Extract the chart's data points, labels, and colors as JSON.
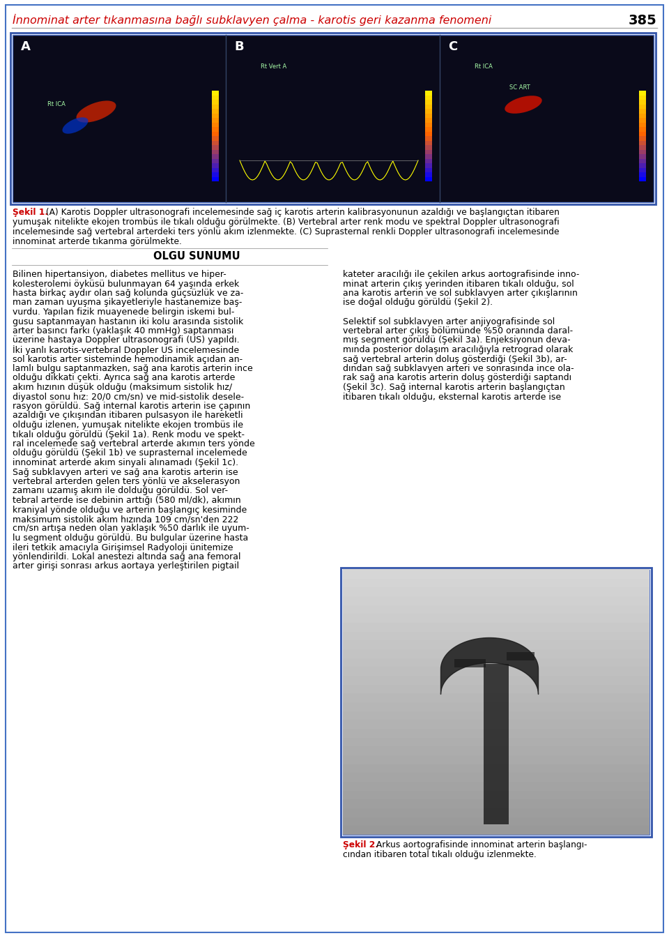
{
  "page_title": "İnnominat arter tıkanmasına bağlı subklavyen çalma - karotis geri kazanma fenomeni",
  "page_number": "385",
  "title_color": "#cc0000",
  "title_fontsize": 11.5,
  "page_number_fontsize": 14,
  "figure_caption_bold": "Şekil 1.",
  "figure_caption_text": " (A) Karotis Doppler ultrasonografi incelemesinde sağ iç karotis arterin kalibrasyonunun azaldığı ve başlangıçtan itibaren yumuşak nitelikte ekojen trombüs ile tıkalı olduğu görülmekte. (B) Vertebral arter renk modu ve spektral Doppler ultrasonografi incelemesinde sağ vertebral arterdeki ters yönlü akım izlenmekte. (C) Suprasternal renkli Doppler ultrasonografi incelemesinde innominat arterde tıkanma görülmekte.",
  "section_title": "OLGU SUNUMU",
  "body_text_col1": "Bilinen hipertansiyon, diabetes mellitus ve hiper-\nkolesterolemi öyküsü bulunmayan 64 yaşında erkek\nhasta birkaç aydır olan sağ kolunda güçsüzlük ve za-\nman zaman uyuşma şikayetleriyle hastanemize baş-\nvurdu. Yapılan fizik muayenede belirgin iskemi bul-\ngusu saptanmayan hastanın iki kolu arasında sistolik\narter basıncı farkı (yaklaşık 40 mmHg) saptanması\nüzerine hastaya Doppler ultrasonografi (US) yapıldı.\nİki yanlı karotis-vertebral Doppler US incelemesinde\nsol karotis arter sisteminde hemodinamik açıdan an-\nlamlı bulgu saptanmazken, sağ ana karotis arterin ince\nolduğu dikkati çekti. Ayrıca sağ ana karotis arterde\nakım hızının düşük olduğu (maksimum sistolik hız/\ndiyastol sonu hız: 20/0 cm/sn) ve mid-sistolik desele-\nrasyon görüldü. Sağ internal karotis arterin ise çapının\nazaldığı ve çıkışından itibaren pulsasyon ile hareketli\nolduğu izlenen, yumuşak nitelikte ekojen trombüs ile\ntıkalı olduğu görüldü (Şekil 1a). Renk modu ve spekt-\nral incelemede sağ vertebral arterde akımın ters yönde\nolduğu görüldü (Şekil 1b) ve suprasternal incelemede\ninnominat arterde akım sinyali alınamadı (Şekil 1c).\nSağ subklavyen arteri ve sağ ana karotis arterin ise\nvertebral arterden gelen ters yönlü ve akselerasyon\nzamanı uzamış akım ile dolduğu görüldü. Sol ver-\ntebral arterde ise debinin arttığı (580 ml/dk), akımın\nkraniyal yönde olduğu ve arterin başlangıç kesiminde\nmaksimum sistolik akım hızında 109 cm/sn'den 222\ncm/sn artışa neden olan yaklaşık %50 darlık ile uyum-\nlu segment olduğu görüldü. Bu bulgular üzerine hasta\nileri tetkik amacıyla Girişimsel Radyoloji ünitemize\nyönlendirildi. Lokal anestezi altında sağ ana femoral\narter girişi sonrası arkus aortaya yerleştirilen pigtail",
  "body_text_col2": "kateter aracılığı ile çekilen arkus aortografisinde inno-\nminat arterin çıkış yerinden itibaren tıkalı olduğu, sol\nana karotis arterin ve sol subklavyen arter çıkışlarının\nise doğal olduğu görüldü (Şekil 2).\n\nSelektif sol subklavyen arter anjiyografisinde sol\nvertebral arter çıkış bölümünde %50 oranında daral-\nmış segment görüldü (Şekil 3a). Enjeksiyonun deva-\nmında posterior dolaşım aracılığıyla retrograd olarak\nsağ vertebral arterin doluş gösterdiği (Şekil 3b), ar-\ndından sağ subklavyen arteri ve sonrasında ince ola-\nrak sağ ana karotis arterin doluş gösterdiği saptandı\n(Şekil 3c). Sağ internal karotis arterin başlangıçtan\nitibaren tıkalı olduğu, eksternal karotis arterde ise",
  "figure2_caption_bold": "Şekil 2.",
  "figure2_caption_text1": " Arkus aortografisinde innominat arterin başlangı-",
  "figure2_caption_text2": "cından itibaren total tıkalı olduğu izlenmekte.",
  "bg_color": "#ffffff",
  "text_color": "#000000",
  "border_color": "#4472c4",
  "caption_bold_color": "#cc0000",
  "body_fontsize": 9.0,
  "caption_fontsize": 8.8,
  "section_fontsize": 10.5,
  "caption_lines": [
    "Şekil 1. (A) Karotis Doppler ultrasonografi incelemesinde sağ iç karotis arterin kalibrasyonunun azaldığı ve başlangıçtan itibaren",
    "yumuşak nitelikte ekojen trombüs ile tıkalı olduğu görülmekte. (B) Vertebral arter renk modu ve spektral Doppler ultrasonografi",
    "incelemesinde sağ vertebral arterdeki ters yönlü akım izlenmekte. (C) Suprasternal renkli Doppler ultrasonografi incelemesinde",
    "innominat arterde tıkanma görülmekte."
  ]
}
